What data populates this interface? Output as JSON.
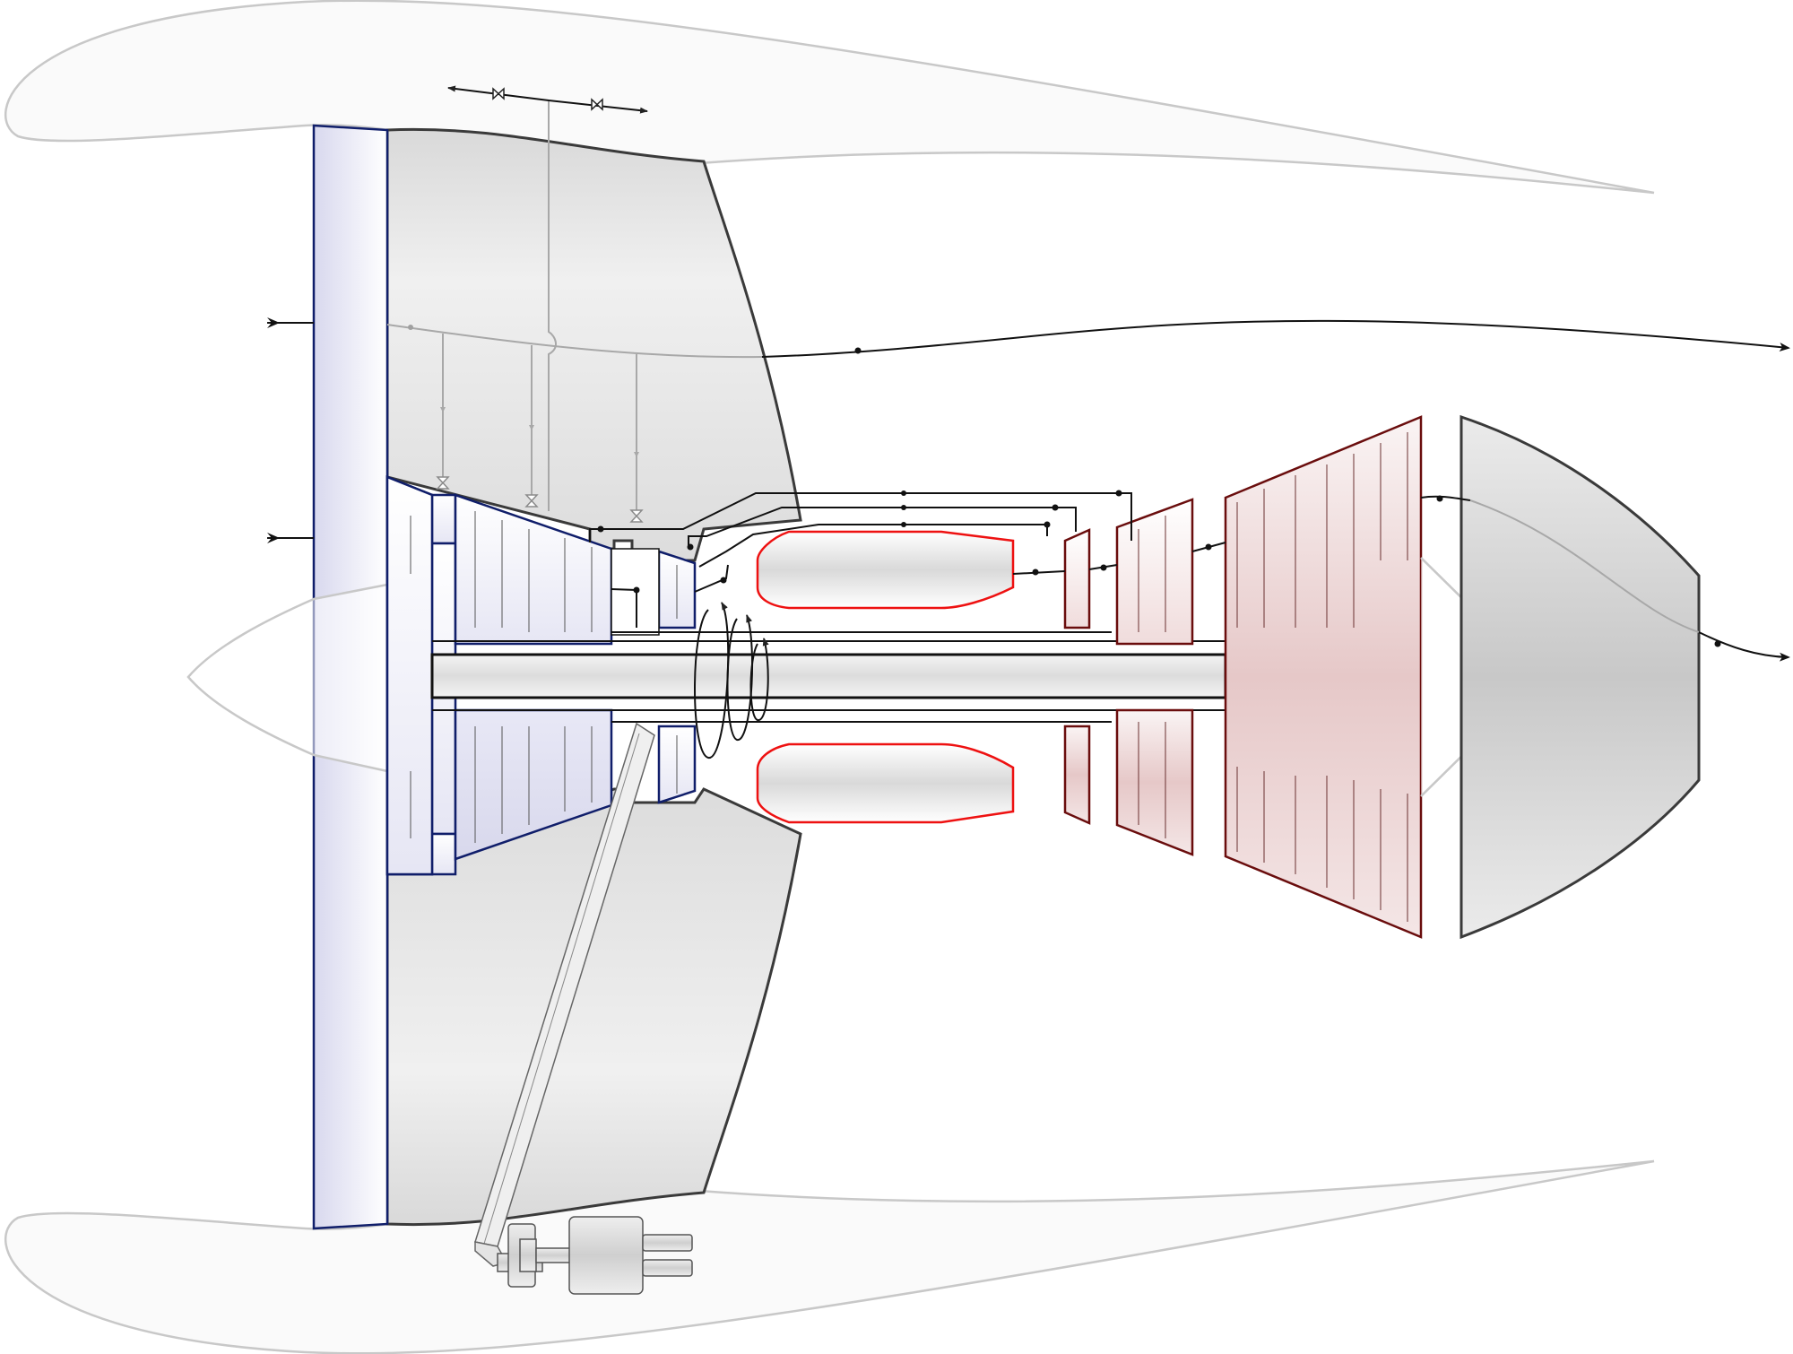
{
  "diagram": {
    "kind": "turbofan engine cross-section schematic",
    "colors": {
      "fan_stroke": "#101e6a",
      "fan_fill": "#dcdcf0",
      "combustor_stroke": "#ee1111",
      "hot_section_stroke": "#6a0d0d",
      "hot_section_fill": "#e6c8c8",
      "casing_fill": "#d8d8d8",
      "nacelle_stroke": "#c8c8c8",
      "flow_line": "#111111",
      "bleed_line": "#a8a8a8"
    },
    "components": [
      "nacelle-upper",
      "nacelle-lower",
      "fan",
      "bypass-duct-upper",
      "bypass-duct-lower",
      "low-pressure-compressor",
      "high-pressure-compressor",
      "combustion-chamber-upper",
      "combustion-chamber-lower",
      "high-pressure-turbine",
      "intermediate-turbine",
      "low-pressure-turbine",
      "exhaust-nozzle",
      "main-shaft",
      "spinner",
      "tail-cone",
      "accessory-gearbox",
      "bleed-air-valves"
    ]
  }
}
